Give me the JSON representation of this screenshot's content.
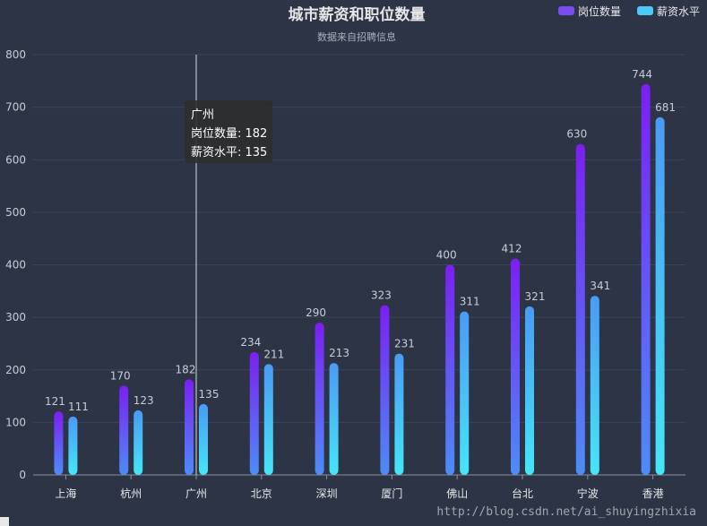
{
  "chart_data": {
    "type": "bar",
    "title": "城市薪资和职位数量",
    "subtitle": "数据来自招聘信息",
    "categories": [
      "上海",
      "杭州",
      "广州",
      "北京",
      "深圳",
      "厦门",
      "佛山",
      "台北",
      "宁波",
      "香港"
    ],
    "series": [
      {
        "name": "岗位数量",
        "values": [
          121,
          170,
          182,
          234,
          290,
          323,
          400,
          412,
          630,
          744
        ]
      },
      {
        "name": "薪资水平",
        "values": [
          111,
          123,
          135,
          211,
          213,
          231,
          311,
          321,
          341,
          681
        ]
      }
    ],
    "ylim": [
      0,
      800
    ],
    "yticks": [
      0,
      100,
      200,
      300,
      400,
      500,
      600,
      700,
      800
    ],
    "grid": true,
    "legend": "top-right",
    "colors": {
      "series1_top": "#7c1ff3",
      "series1_bottom": "#4d8cf7",
      "series2_top": "#4a9af4",
      "series2_bottom": "#45e6f8",
      "legend1": "#7d4bf2",
      "legend2": "#4cc7f6"
    }
  },
  "tooltip": {
    "category": "广州",
    "line1": "岗位数量: 182",
    "line2": "薪资水平: 135"
  },
  "watermark": "http://blog.csdn.net/ai_shuyingzhixia"
}
